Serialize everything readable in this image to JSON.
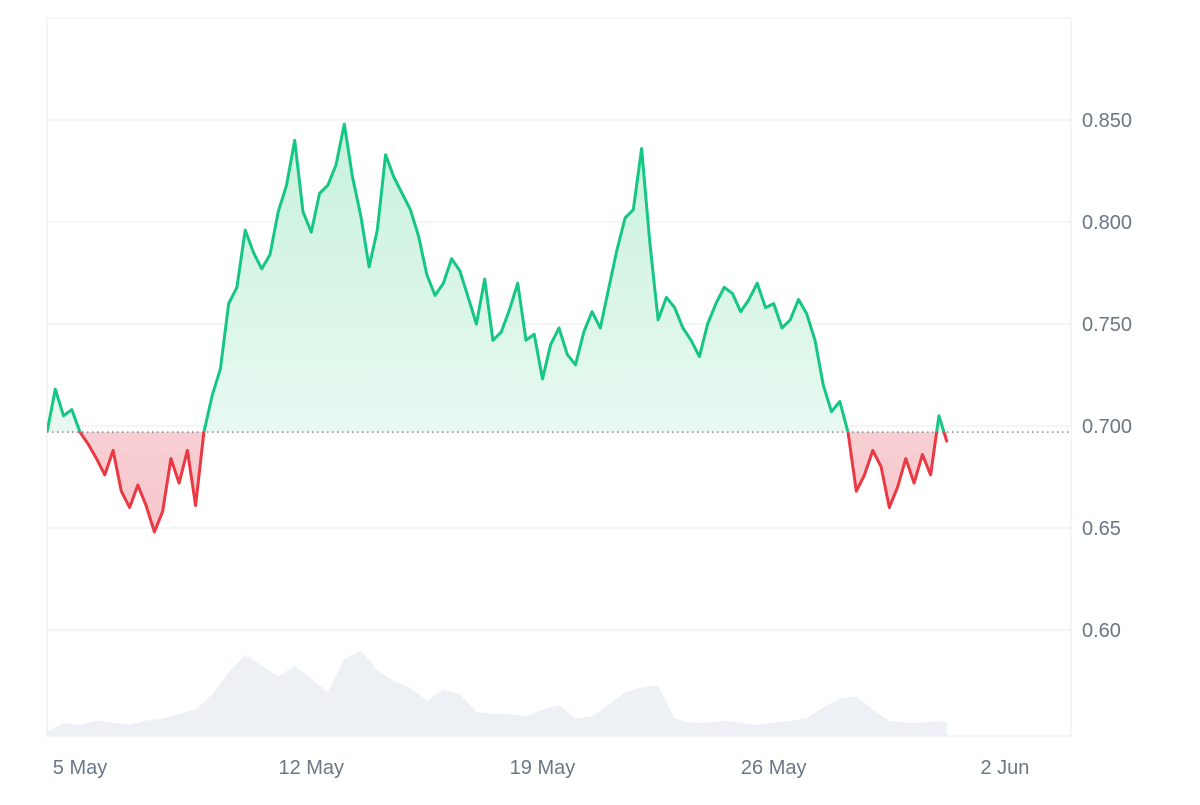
{
  "chart_data": {
    "type": "area",
    "baseline": 0.697,
    "colors": {
      "up_line": "#16c784",
      "down_line": "#ea3943",
      "up_fill_top": "#c8f1dd",
      "up_fill_bottom": "#f2fcf7",
      "down_fill_top": "#fbe7e9",
      "down_fill_bottom": "#f6c7cc",
      "volume_fill": "#edf1f5",
      "grid": "#e8ebee",
      "baseline_dots": "#555f6b",
      "tick_text": "#6b7785"
    },
    "x_range": [
      "2024-05-04",
      "2024-06-04"
    ],
    "ylim": [
      0.548,
      0.9
    ],
    "y_ticks": [
      "0.850",
      "0.800",
      "0.750",
      "0.700",
      "0.65",
      "0.60"
    ],
    "x_ticks": [
      {
        "label": "5 May",
        "date": "2024-05-05"
      },
      {
        "label": "12 May",
        "date": "2024-05-12"
      },
      {
        "label": "19 May",
        "date": "2024-05-19"
      },
      {
        "label": "26 May",
        "date": "2024-05-26"
      },
      {
        "label": "2 Jun",
        "date": "2024-06-02"
      }
    ],
    "price_series": [
      [
        "2024-05-04 00:00",
        0.697
      ],
      [
        "2024-05-04 06:00",
        0.718
      ],
      [
        "2024-05-04 12:00",
        0.705
      ],
      [
        "2024-05-04 18:00",
        0.708
      ],
      [
        "2024-05-05 00:00",
        0.697
      ],
      [
        "2024-05-05 06:00",
        0.691
      ],
      [
        "2024-05-05 12:00",
        0.684
      ],
      [
        "2024-05-05 18:00",
        0.676
      ],
      [
        "2024-05-06 00:00",
        0.688
      ],
      [
        "2024-05-06 06:00",
        0.668
      ],
      [
        "2024-05-06 12:00",
        0.66
      ],
      [
        "2024-05-06 18:00",
        0.671
      ],
      [
        "2024-05-07 00:00",
        0.661
      ],
      [
        "2024-05-07 06:00",
        0.648
      ],
      [
        "2024-05-07 12:00",
        0.658
      ],
      [
        "2024-05-07 18:00",
        0.684
      ],
      [
        "2024-05-08 00:00",
        0.672
      ],
      [
        "2024-05-08 06:00",
        0.688
      ],
      [
        "2024-05-08 12:00",
        0.661
      ],
      [
        "2024-05-08 18:00",
        0.697
      ],
      [
        "2024-05-09 00:00",
        0.715
      ],
      [
        "2024-05-09 06:00",
        0.728
      ],
      [
        "2024-05-09 12:00",
        0.76
      ],
      [
        "2024-05-09 18:00",
        0.768
      ],
      [
        "2024-05-10 00:00",
        0.796
      ],
      [
        "2024-05-10 06:00",
        0.785
      ],
      [
        "2024-05-10 12:00",
        0.777
      ],
      [
        "2024-05-10 18:00",
        0.784
      ],
      [
        "2024-05-11 00:00",
        0.805
      ],
      [
        "2024-05-11 06:00",
        0.818
      ],
      [
        "2024-05-11 12:00",
        0.84
      ],
      [
        "2024-05-11 18:00",
        0.805
      ],
      [
        "2024-05-12 00:00",
        0.795
      ],
      [
        "2024-05-12 06:00",
        0.814
      ],
      [
        "2024-05-12 12:00",
        0.818
      ],
      [
        "2024-05-12 18:00",
        0.828
      ],
      [
        "2024-05-13 00:00",
        0.848
      ],
      [
        "2024-05-13 06:00",
        0.822
      ],
      [
        "2024-05-13 12:00",
        0.803
      ],
      [
        "2024-05-13 18:00",
        0.778
      ],
      [
        "2024-05-14 00:00",
        0.796
      ],
      [
        "2024-05-14 06:00",
        0.833
      ],
      [
        "2024-05-14 12:00",
        0.822
      ],
      [
        "2024-05-14 18:00",
        0.814
      ],
      [
        "2024-05-15 00:00",
        0.806
      ],
      [
        "2024-05-15 06:00",
        0.793
      ],
      [
        "2024-05-15 12:00",
        0.774
      ],
      [
        "2024-05-15 18:00",
        0.764
      ],
      [
        "2024-05-16 00:00",
        0.77
      ],
      [
        "2024-05-16 06:00",
        0.782
      ],
      [
        "2024-05-16 12:00",
        0.776
      ],
      [
        "2024-05-16 18:00",
        0.763
      ],
      [
        "2024-05-17 00:00",
        0.75
      ],
      [
        "2024-05-17 06:00",
        0.772
      ],
      [
        "2024-05-17 12:00",
        0.742
      ],
      [
        "2024-05-17 18:00",
        0.746
      ],
      [
        "2024-05-18 00:00",
        0.757
      ],
      [
        "2024-05-18 06:00",
        0.77
      ],
      [
        "2024-05-18 12:00",
        0.742
      ],
      [
        "2024-05-18 18:00",
        0.745
      ],
      [
        "2024-05-19 00:00",
        0.723
      ],
      [
        "2024-05-19 06:00",
        0.74
      ],
      [
        "2024-05-19 12:00",
        0.748
      ],
      [
        "2024-05-19 18:00",
        0.735
      ],
      [
        "2024-05-20 00:00",
        0.73
      ],
      [
        "2024-05-20 06:00",
        0.746
      ],
      [
        "2024-05-20 12:00",
        0.756
      ],
      [
        "2024-05-20 18:00",
        0.748
      ],
      [
        "2024-05-21 00:00",
        0.767
      ],
      [
        "2024-05-21 06:00",
        0.786
      ],
      [
        "2024-05-21 12:00",
        0.802
      ],
      [
        "2024-05-21 18:00",
        0.806
      ],
      [
        "2024-05-22 00:00",
        0.836
      ],
      [
        "2024-05-22 06:00",
        0.79
      ],
      [
        "2024-05-22 12:00",
        0.752
      ],
      [
        "2024-05-22 18:00",
        0.763
      ],
      [
        "2024-05-23 00:00",
        0.758
      ],
      [
        "2024-05-23 06:00",
        0.748
      ],
      [
        "2024-05-23 12:00",
        0.742
      ],
      [
        "2024-05-23 18:00",
        0.734
      ],
      [
        "2024-05-24 00:00",
        0.75
      ],
      [
        "2024-05-24 06:00",
        0.76
      ],
      [
        "2024-05-24 12:00",
        0.768
      ],
      [
        "2024-05-24 18:00",
        0.765
      ],
      [
        "2024-05-25 00:00",
        0.756
      ],
      [
        "2024-05-25 06:00",
        0.762
      ],
      [
        "2024-05-25 12:00",
        0.77
      ],
      [
        "2024-05-25 18:00",
        0.758
      ],
      [
        "2024-05-26 00:00",
        0.76
      ],
      [
        "2024-05-26 06:00",
        0.748
      ],
      [
        "2024-05-26 12:00",
        0.752
      ],
      [
        "2024-05-26 18:00",
        0.762
      ],
      [
        "2024-05-27 00:00",
        0.755
      ],
      [
        "2024-05-27 06:00",
        0.742
      ],
      [
        "2024-05-27 12:00",
        0.72
      ],
      [
        "2024-05-27 18:00",
        0.707
      ],
      [
        "2024-05-28 00:00",
        0.712
      ],
      [
        "2024-05-28 06:00",
        0.697
      ],
      [
        "2024-05-28 12:00",
        0.668
      ],
      [
        "2024-05-28 18:00",
        0.676
      ],
      [
        "2024-05-29 00:00",
        0.688
      ],
      [
        "2024-05-29 06:00",
        0.68
      ],
      [
        "2024-05-29 12:00",
        0.66
      ],
      [
        "2024-05-29 18:00",
        0.67
      ],
      [
        "2024-05-30 00:00",
        0.684
      ],
      [
        "2024-05-30 06:00",
        0.672
      ],
      [
        "2024-05-30 12:00",
        0.686
      ],
      [
        "2024-05-30 18:00",
        0.676
      ],
      [
        "2024-05-31 00:00",
        0.705
      ],
      [
        "2024-05-31 06:00",
        0.692
      ]
    ],
    "volume_series": [
      [
        "2024-05-04 00:00",
        0.002
      ],
      [
        "2024-05-04 12:00",
        0.006
      ],
      [
        "2024-05-05 00:00",
        0.005
      ],
      [
        "2024-05-05 12:00",
        0.007
      ],
      [
        "2024-05-06 00:00",
        0.006
      ],
      [
        "2024-05-06 12:00",
        0.005
      ],
      [
        "2024-05-07 00:00",
        0.007
      ],
      [
        "2024-05-07 12:00",
        0.008
      ],
      [
        "2024-05-08 00:00",
        0.01
      ],
      [
        "2024-05-08 12:00",
        0.012
      ],
      [
        "2024-05-09 00:00",
        0.019
      ],
      [
        "2024-05-09 12:00",
        0.029
      ],
      [
        "2024-05-10 00:00",
        0.037
      ],
      [
        "2024-05-10 12:00",
        0.032
      ],
      [
        "2024-05-11 00:00",
        0.027
      ],
      [
        "2024-05-11 12:00",
        0.032
      ],
      [
        "2024-05-12 00:00",
        0.026
      ],
      [
        "2024-05-12 12:00",
        0.02
      ],
      [
        "2024-05-13 00:00",
        0.035
      ],
      [
        "2024-05-13 12:00",
        0.039
      ],
      [
        "2024-05-14 00:00",
        0.03
      ],
      [
        "2024-05-14 12:00",
        0.025
      ],
      [
        "2024-05-15 00:00",
        0.022
      ],
      [
        "2024-05-15 12:00",
        0.016
      ],
      [
        "2024-05-16 00:00",
        0.021
      ],
      [
        "2024-05-16 12:00",
        0.019
      ],
      [
        "2024-05-17 00:00",
        0.011
      ],
      [
        "2024-05-17 12:00",
        0.01
      ],
      [
        "2024-05-18 00:00",
        0.01
      ],
      [
        "2024-05-18 12:00",
        0.009
      ],
      [
        "2024-05-19 00:00",
        0.012
      ],
      [
        "2024-05-19 12:00",
        0.014
      ],
      [
        "2024-05-20 00:00",
        0.008
      ],
      [
        "2024-05-20 12:00",
        0.009
      ],
      [
        "2024-05-21 00:00",
        0.014
      ],
      [
        "2024-05-21 12:00",
        0.02
      ],
      [
        "2024-05-22 00:00",
        0.022
      ],
      [
        "2024-05-22 12:00",
        0.023
      ],
      [
        "2024-05-23 00:00",
        0.008
      ],
      [
        "2024-05-23 12:00",
        0.006
      ],
      [
        "2024-05-24 00:00",
        0.006
      ],
      [
        "2024-05-24 12:00",
        0.007
      ],
      [
        "2024-05-25 00:00",
        0.006
      ],
      [
        "2024-05-25 12:00",
        0.005
      ],
      [
        "2024-05-26 00:00",
        0.006
      ],
      [
        "2024-05-26 12:00",
        0.007
      ],
      [
        "2024-05-27 00:00",
        0.008
      ],
      [
        "2024-05-27 12:00",
        0.013
      ],
      [
        "2024-05-28 00:00",
        0.017
      ],
      [
        "2024-05-28 12:00",
        0.018
      ],
      [
        "2024-05-29 00:00",
        0.012
      ],
      [
        "2024-05-29 12:00",
        0.007
      ],
      [
        "2024-05-30 00:00",
        0.006
      ],
      [
        "2024-05-30 12:00",
        0.006
      ],
      [
        "2024-05-31 00:00",
        0.007
      ],
      [
        "2024-05-31 06:00",
        0.006
      ]
    ]
  }
}
